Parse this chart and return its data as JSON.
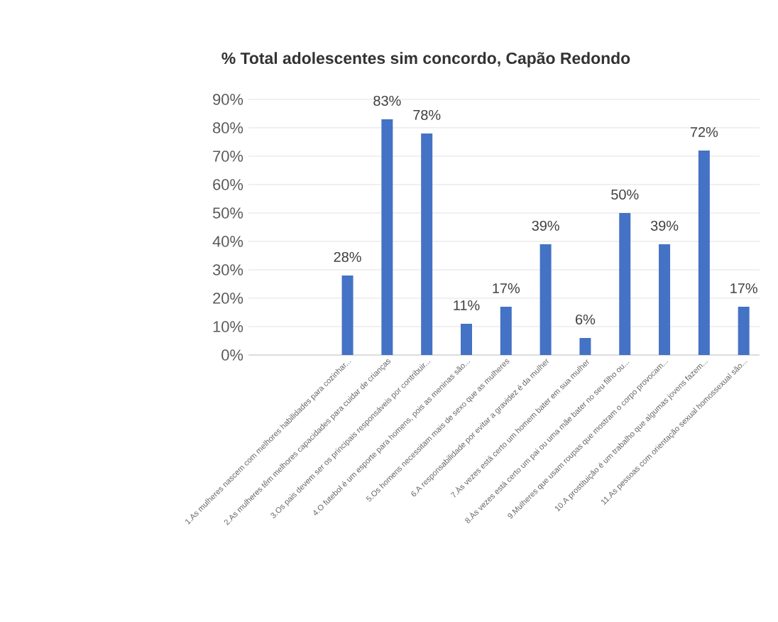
{
  "chart_data": {
    "type": "bar",
    "title": "% Total adolescentes sim concordo, Capão Redondo",
    "categories": [
      "1.As mulheres nascem com melhores habilidades para cozinhar...",
      "2.As mulheres têm melhores capacidades para cuidar de crianças",
      "3.Os pais devem ser os principais responsáveis por contribuir...",
      "4.O futebol é um esporte para homens, pois as meninas são...",
      "5.Os homens necessitam mais de sexo que as mulheres",
      "6.A responsabilidade por evitar a gravidez é da mulher",
      "7.Às vezes está certo um homem bater em sua mulher",
      "8.Às vezes está certo um pai ou uma mãe bater no seu filho ou...",
      "9.Mulheres que usam roupas que mostram o corpo provocam...",
      "10.A prostituição é um trabalho que algumas jovens fazem...",
      "11.As pessoas com orientação sexual homossexual são..."
    ],
    "values": [
      28,
      83,
      78,
      11,
      17,
      39,
      6,
      50,
      39,
      72,
      17
    ],
    "value_labels": [
      "28%",
      "83%",
      "78%",
      "11%",
      "17%",
      "39%",
      "6%",
      "50%",
      "39%",
      "72%",
      "17%"
    ],
    "color": "#4472c4",
    "ylim": [
      0,
      90
    ],
    "yticks": [
      {
        "value": 0,
        "label": "0%"
      },
      {
        "value": 10,
        "label": "10%"
      },
      {
        "value": 20,
        "label": "20%"
      },
      {
        "value": 30,
        "label": "30%"
      },
      {
        "value": 40,
        "label": "40%"
      },
      {
        "value": 50,
        "label": "50%"
      },
      {
        "value": 60,
        "label": "60%"
      },
      {
        "value": 70,
        "label": "70%"
      },
      {
        "value": 80,
        "label": "80%"
      },
      {
        "value": 90,
        "label": "90%"
      }
    ],
    "grid": "y"
  }
}
